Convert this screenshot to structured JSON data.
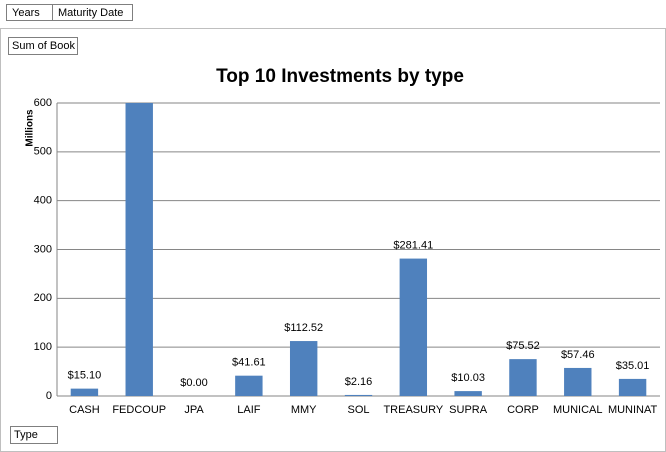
{
  "pivot": {
    "filters": [
      "Years",
      "Maturity Date"
    ],
    "value_field": "Sum of Book",
    "axis_field": "Type"
  },
  "chart_data": {
    "type": "bar",
    "title": "Top 10 Investments by type",
    "y_label": "Millions",
    "categories": [
      "CASH",
      "FEDCOUP",
      "JPA",
      "LAIF",
      "MMY",
      "SOL",
      "TREASURY",
      "SUPRA",
      "CORP",
      "MUNICAL",
      "MUNINAT"
    ],
    "values": [
      15.1,
      600,
      0.0,
      41.61,
      112.52,
      2.16,
      281.41,
      10.03,
      75.52,
      57.46,
      35.01
    ],
    "value_labels": [
      "$15.10",
      null,
      "$0.00",
      "$41.61",
      "$112.52",
      "$2.16",
      "$281.41",
      "$10.03",
      "$75.52",
      "$57.46",
      "$35.01"
    ],
    "color": "#4f81bd",
    "ylim": [
      0,
      600
    ],
    "yticks": [
      0,
      100,
      200,
      300,
      400,
      500,
      600
    ],
    "grid": true
  }
}
